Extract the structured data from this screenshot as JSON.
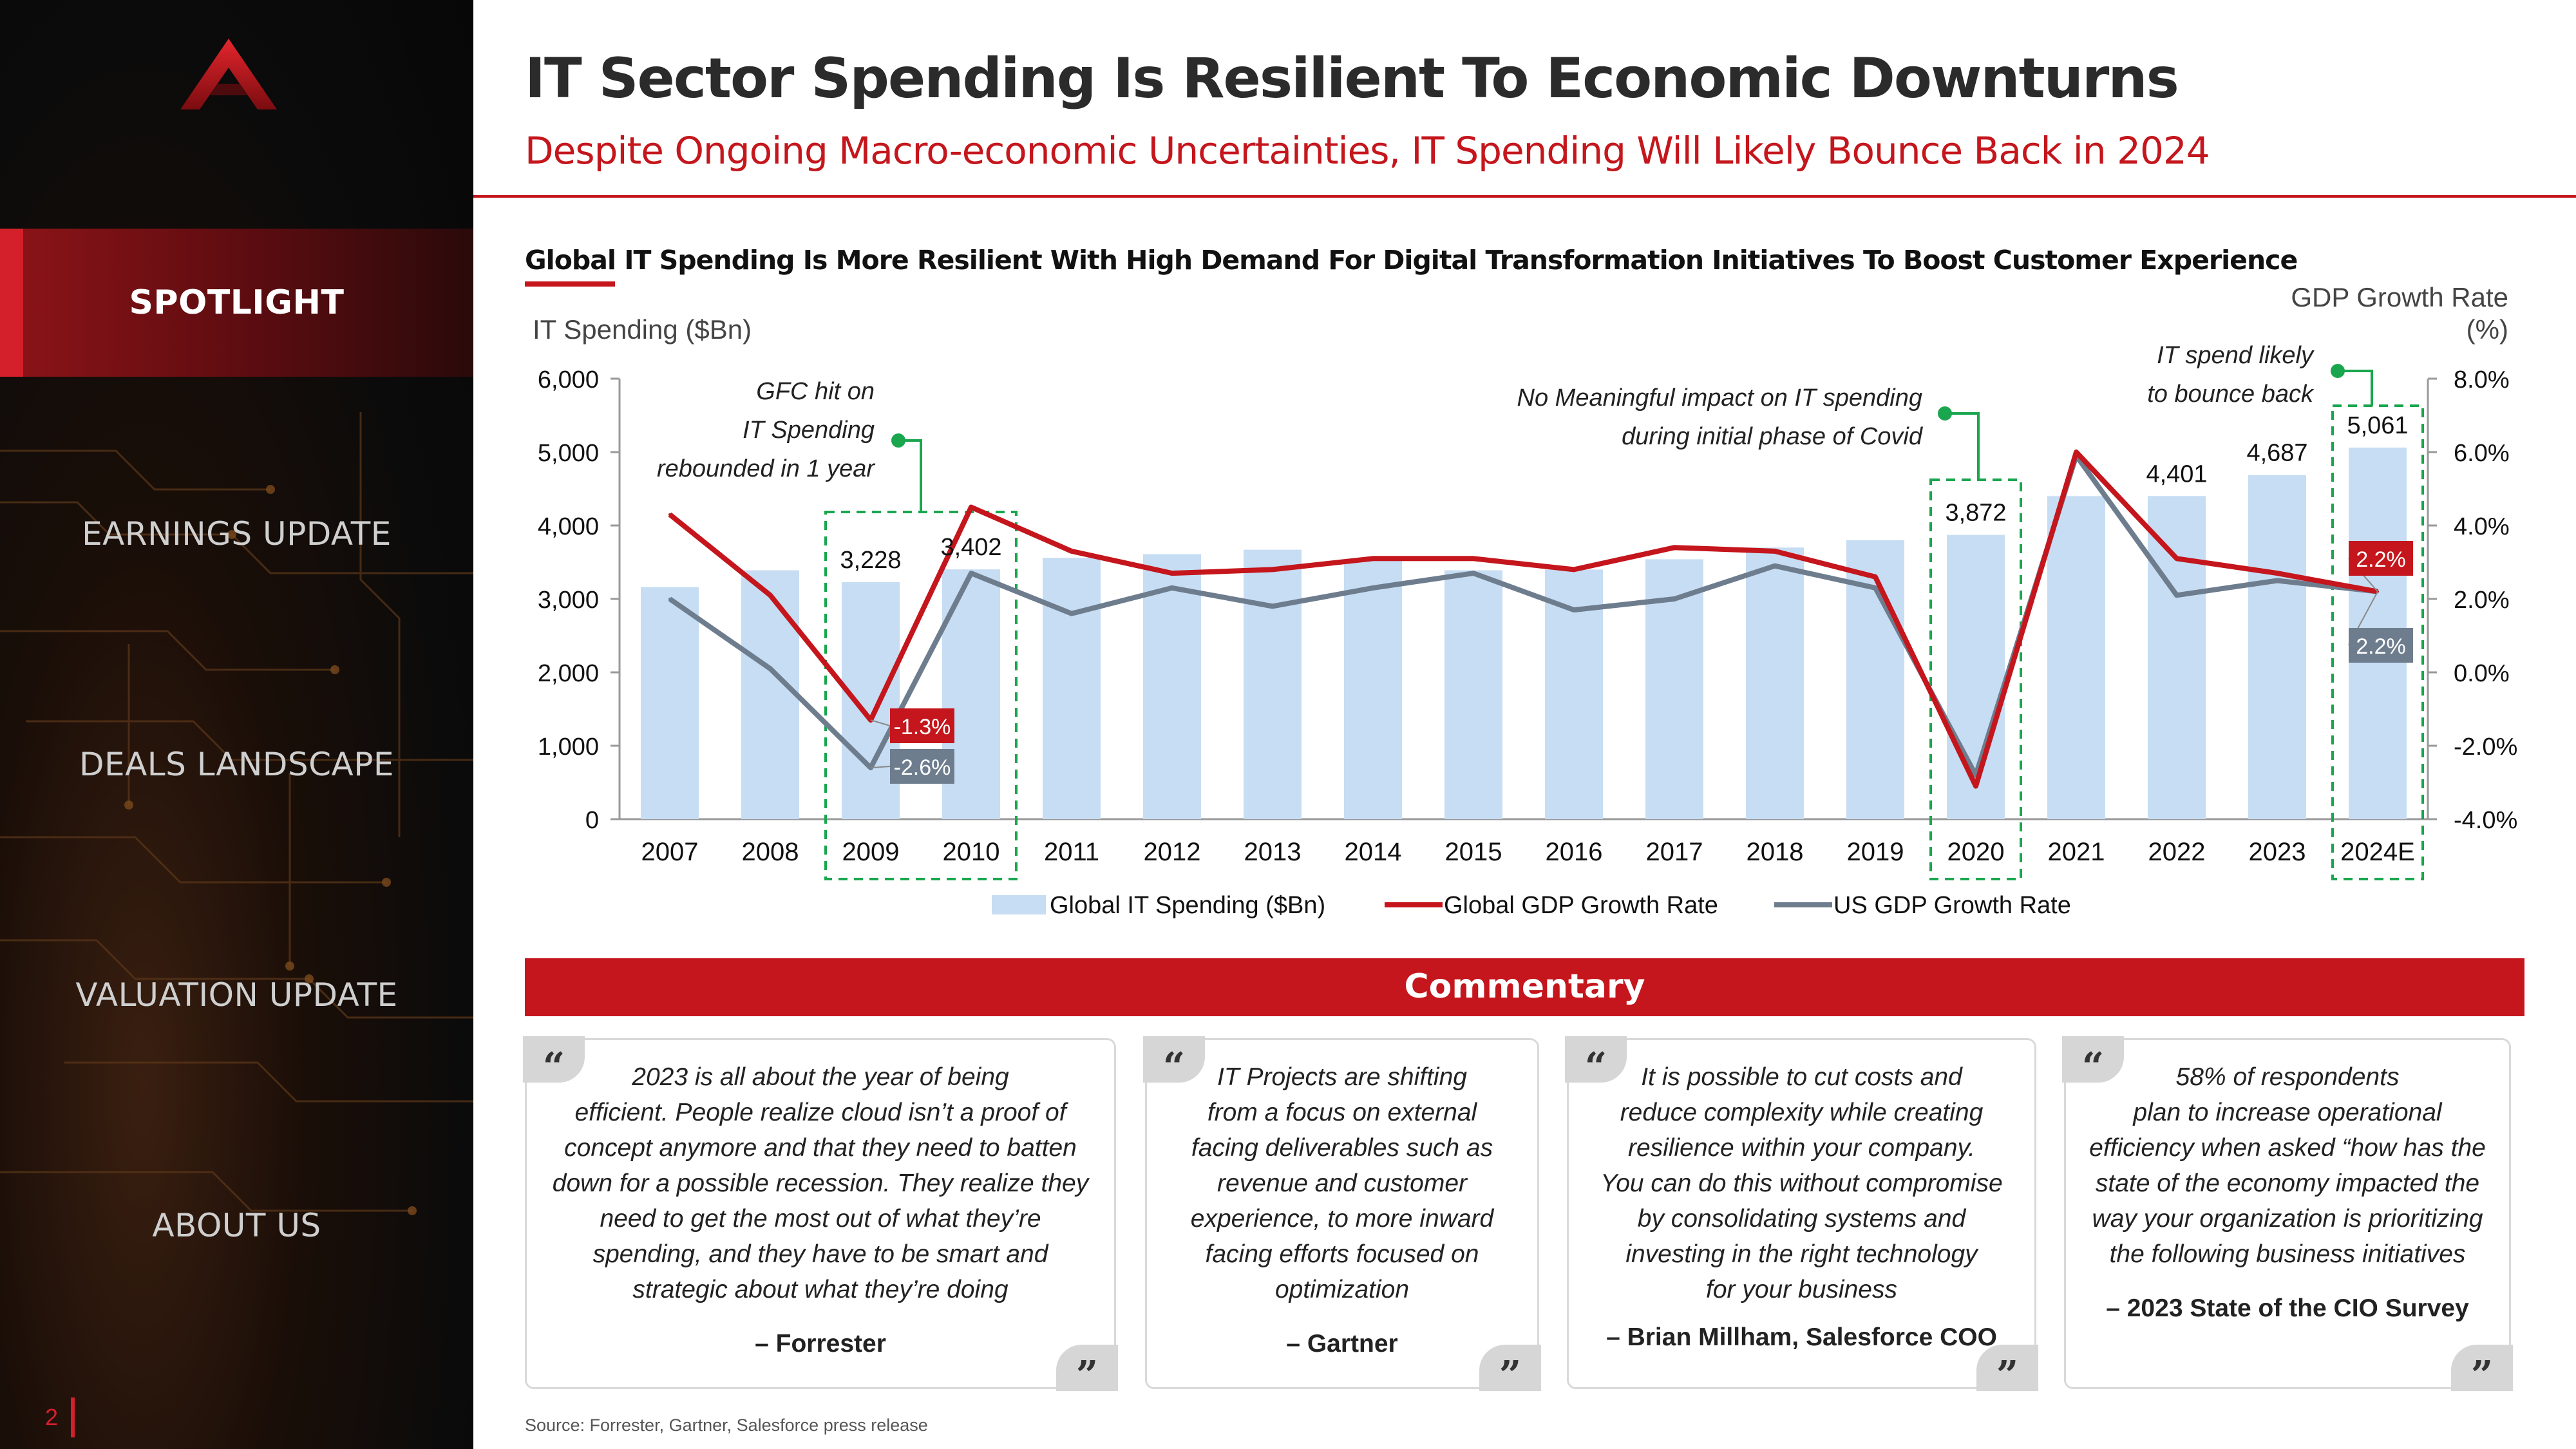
{
  "sidebar": {
    "page_number": "2",
    "items": [
      {
        "label": "SPOTLIGHT",
        "active": true
      },
      {
        "label": "EARNINGS UPDATE",
        "active": false
      },
      {
        "label": "DEALS LANDSCAPE",
        "active": false
      },
      {
        "label": "VALUATION UPDATE",
        "active": false
      },
      {
        "label": "ABOUT US",
        "active": false
      }
    ]
  },
  "header": {
    "title": "IT Sector Spending Is Resilient To Economic Downturns",
    "subtitle": "Despite Ongoing Macro-economic Uncertainties, IT Spending Will Likely Bounce Back in 2024"
  },
  "colors": {
    "brand_red": "#c4161c",
    "bar_blue": "#c6ddf3",
    "us_gray": "#6e7d8e",
    "callout_green": "#1aa64e"
  },
  "chart_data": {
    "type": "bar",
    "title": "Global IT Spending Is More Resilient With High Demand For Digital Transformation Initiatives To Boost Customer Experience",
    "ylabel": "IT Spending ($Bn)",
    "y2label": "GDP Growth Rate (%)",
    "ylim": [
      0,
      6000
    ],
    "y_ticks": [
      "0",
      "1,000",
      "2,000",
      "3,000",
      "4,000",
      "5,000",
      "6,000"
    ],
    "y2lim": [
      -4,
      8
    ],
    "y2_ticks": [
      "-4.0%",
      "-2.0%",
      "0.0%",
      "2.0%",
      "4.0%",
      "6.0%",
      "8.0%"
    ],
    "categories": [
      "2007",
      "2008",
      "2009",
      "2010",
      "2011",
      "2012",
      "2013",
      "2014",
      "2015",
      "2016",
      "2017",
      "2018",
      "2019",
      "2020",
      "2021",
      "2022",
      "2023",
      "2024E"
    ],
    "series": [
      {
        "name": "Global IT Spending ($Bn)",
        "type": "bar",
        "axis": "left",
        "color": "#c6ddf3",
        "values": [
          3160,
          3390,
          3228,
          3402,
          3560,
          3610,
          3670,
          3530,
          3390,
          3400,
          3540,
          3700,
          3800,
          3872,
          4400,
          4401,
          4687,
          5061
        ]
      },
      {
        "name": "Global GDP Growth Rate",
        "type": "line",
        "axis": "right",
        "color": "#c4161c",
        "values": [
          4.3,
          2.1,
          -1.3,
          4.5,
          3.3,
          2.7,
          2.8,
          3.1,
          3.1,
          2.8,
          3.4,
          3.3,
          2.6,
          -3.1,
          6.0,
          3.1,
          2.7,
          2.2
        ]
      },
      {
        "name": "US GDP Growth Rate",
        "type": "line",
        "axis": "right",
        "color": "#6e7d8e",
        "values": [
          2.0,
          0.1,
          -2.6,
          2.7,
          1.6,
          2.3,
          1.8,
          2.3,
          2.7,
          1.7,
          2.0,
          2.9,
          2.3,
          -2.8,
          5.9,
          2.1,
          2.5,
          2.2
        ]
      }
    ],
    "bar_labels": [
      {
        "index": 2,
        "text": "3,228"
      },
      {
        "index": 3,
        "text": "3,402"
      },
      {
        "index": 13,
        "text": "3,872"
      },
      {
        "index": 15,
        "text": "4,401"
      },
      {
        "index": 16,
        "text": "4,687"
      },
      {
        "index": 17,
        "text": "5,061"
      }
    ],
    "rate_labels": [
      {
        "index": 2,
        "text": "-1.3%",
        "series": "global"
      },
      {
        "index": 2,
        "text": "-2.6%",
        "series": "us"
      },
      {
        "index": 17,
        "text": "2.2%",
        "series": "global"
      },
      {
        "index": 17,
        "text": "2.2%",
        "series": "us"
      }
    ],
    "annotations": [
      {
        "lines": [
          "GFC hit on",
          "IT Spending",
          "rebounded in 1 year"
        ],
        "highlight": [
          "2009",
          "2010"
        ]
      },
      {
        "lines": [
          "No Meaningful impact on IT spending",
          "during initial phase of Covid"
        ],
        "highlight": [
          "2020"
        ]
      },
      {
        "lines": [
          "IT spend likely",
          "to bounce back"
        ],
        "highlight": [
          "2024E"
        ]
      }
    ],
    "legend_position": "bottom",
    "grid": false
  },
  "commentary": {
    "title": "Commentary",
    "quotes": [
      {
        "lines": [
          "2023 is all about the year of being",
          "efficient. People realize cloud isn’t a proof of",
          "concept anymore and that they need to batten",
          "down for a possible recession. They realize they",
          "need to get the most out of what they’re",
          "spending, and they have to be smart and",
          "strategic about what they’re doing"
        ],
        "author": "– Forrester"
      },
      {
        "lines": [
          "IT Projects are shifting",
          "from a focus on external",
          "facing deliverables such as",
          "revenue and customer",
          "experience, to more inward",
          "facing efforts focused on",
          "optimization"
        ],
        "author": "– Gartner"
      },
      {
        "lines": [
          "It is possible to cut costs and",
          "reduce complexity while creating",
          "resilience within your company.",
          "You can do this without compromise",
          "by consolidating systems and",
          "investing in the right technology",
          "for your business"
        ],
        "author": "– Brian Millham, Salesforce COO"
      },
      {
        "lines": [
          "58% of respondents",
          "plan to increase operational",
          "efficiency when asked “how has the",
          "state of the economy impacted the",
          "way your organization is prioritizing",
          "the following business initiatives"
        ],
        "author": "– 2023 State of the CIO Survey"
      }
    ]
  },
  "source": "Source: Forrester, Gartner, Salesforce press release"
}
